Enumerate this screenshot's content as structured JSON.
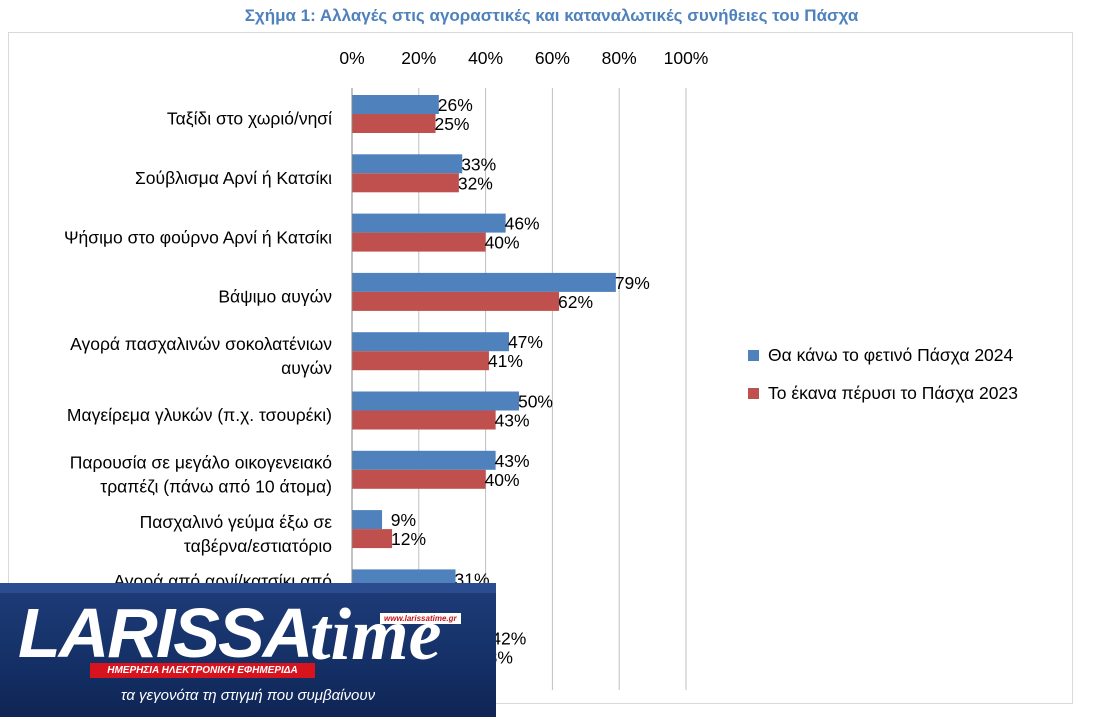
{
  "chart_data": {
    "type": "bar",
    "orientation": "horizontal",
    "title": "Σχήμα 1: Αλλαγές στις αγοραστικές και καταναλωτικές συνήθειες του Πάσχα",
    "categories": [
      [
        "Ταξίδι στο χωριό/νησί"
      ],
      [
        "Σούβλισμα Αρνί ή Κατσίκι"
      ],
      [
        "Ψήσιμο στο φούρνο Αρνί ή Κατσίκι"
      ],
      [
        "Βάψιμο αυγών"
      ],
      [
        "Αγορά πασχαλινών σοκολατένιων",
        "αυγών"
      ],
      [
        "Μαγείρεμα γλυκών (π.χ. τσουρέκι)"
      ],
      [
        "Παρουσία σε μεγάλο οικογενειακό",
        "τραπέζι (πάνω από 10 άτομα)"
      ],
      [
        "Πασχαλινό γεύμα έξω σε",
        "ταβέρνα/εστιατόριο"
      ],
      [
        "Αγορά από αρνί/κατσίκι από",
        ""
      ],
      [
        ""
      ]
    ],
    "series": [
      {
        "name": "Θα κάνω το φετινό Πάσχα 2024",
        "color": "#4f81bd",
        "values": [
          26,
          33,
          46,
          79,
          47,
          50,
          43,
          9,
          31,
          42
        ],
        "labels": [
          "26%",
          "33%",
          "46%",
          "79%",
          "47%",
          "50%",
          "43%",
          "9%",
          "31%",
          "42%"
        ]
      },
      {
        "name": "Το έκανα πέρυσι το Πάσχα 2023",
        "color": "#c0504d",
        "values": [
          25,
          32,
          40,
          62,
          41,
          43,
          40,
          12,
          null,
          38
        ],
        "labels": [
          "25%",
          "32%",
          "40%",
          "62%",
          "41%",
          "43%",
          "40%",
          "12%",
          "",
          "38%"
        ]
      }
    ],
    "xlim": [
      0,
      100
    ],
    "xticks": [
      "0%",
      "20%",
      "40%",
      "60%",
      "80%",
      "100%"
    ],
    "grid": true,
    "legend_position": "right"
  },
  "logo": {
    "word_main": "LARISSA",
    "word_accent": "time",
    "url": "www.larissatime.gr",
    "subtitle": "ΗΜΕΡΗΣΙΑ ΗΛΕΚΤΡΟΝΙΚΗ ΕΦΗΜΕΡΙΔΑ",
    "tagline": "τα γεγονότα τη στιγμή που συμβαίνουν"
  }
}
